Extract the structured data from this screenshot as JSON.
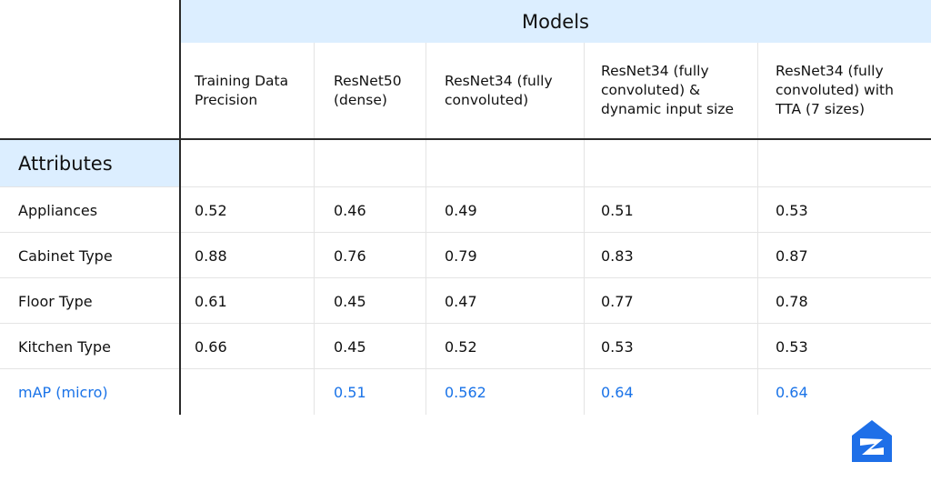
{
  "colors": {
    "header_bg": "#dceeff",
    "text": "#111111",
    "map_text": "#1a73e8",
    "grid_line": "#e4e4e4",
    "main_rule": "#2a2a2a",
    "logo_blue": "#1e6fe8"
  },
  "icons": {
    "logo": "house-logo-icon"
  },
  "chart_data": {
    "type": "table",
    "title": "",
    "column_group_label": "Models",
    "row_group_label": "Attributes",
    "columns": [
      "Training Data\nPrecision",
      "ResNet50\n(dense)",
      "ResNet34  (fully\nconvoluted)",
      "ResNet34  (fully\nconvoluted) &\ndynamic input size",
      "ResNet34  (fully\nconvoluted) with\nTTA (7 sizes)"
    ],
    "rows": [
      {
        "label": "Appliances",
        "values": [
          "0.52",
          "0.46",
          "0.49",
          "0.51",
          "0.53"
        ]
      },
      {
        "label": "Cabinet Type",
        "values": [
          "0.88",
          "0.76",
          "0.79",
          "0.83",
          "0.87"
        ]
      },
      {
        "label": "Floor Type",
        "values": [
          "0.61",
          "0.45",
          "0.47",
          "0.77",
          "0.78"
        ]
      },
      {
        "label": "Kitchen Type",
        "values": [
          "0.66",
          "0.45",
          "0.52",
          "0.53",
          "0.53"
        ]
      }
    ],
    "summary_row": {
      "label": "mAP (micro)",
      "values": [
        "",
        "0.51",
        "0.562",
        "0.64",
        "0.64"
      ]
    }
  }
}
